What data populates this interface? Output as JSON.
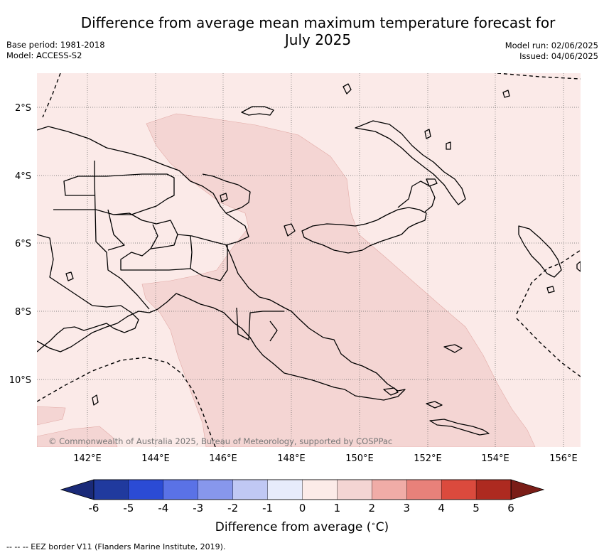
{
  "title": "Difference from average mean maximum temperature forecast for July 2025",
  "title_line1": "Difference from average mean maximum temperature forecast for",
  "title_line2": "July 2025",
  "meta": {
    "base_period": "Base period: 1981-2018",
    "model": "Model: ACCESS-S2",
    "model_run": "Model run: 02/06/2025",
    "issued": "Issued: 04/06/2025"
  },
  "map": {
    "region": "Papua New Guinea",
    "lat_labels": [
      "2°S",
      "4°S",
      "6°S",
      "8°S",
      "10°S"
    ],
    "lon_labels": [
      "142°E",
      "144°E",
      "146°E",
      "148°E",
      "150°E",
      "152°E",
      "154°E",
      "156°E"
    ],
    "copyright": "© Commonwealth of Australia 2025, Bureau of Meteorology, supported by COSPPac",
    "fill_colors": {
      "range_0_1": "#fbeae8",
      "range_1_2": "#f4d5d3"
    }
  },
  "colorbar": {
    "title": "Difference from average (°C)",
    "ticks": [
      "-6",
      "-5",
      "-4",
      "-3",
      "-2",
      "-1",
      "0",
      "1",
      "2",
      "3",
      "4",
      "5",
      "6"
    ],
    "colors": [
      "#203a9e",
      "#2b4bd5",
      "#5a72e6",
      "#8797ec",
      "#c0c8f4",
      "#e7ebfb",
      "#fcebe8",
      "#f4d5d3",
      "#f0aca7",
      "#e8817a",
      "#db4a3d",
      "#ad2a20"
    ],
    "under_color": "#1a2a78",
    "over_color": "#7a1d17"
  },
  "footnote": "--  --  -- EEZ border V11 (Flanders Marine Institute, 2019)."
}
